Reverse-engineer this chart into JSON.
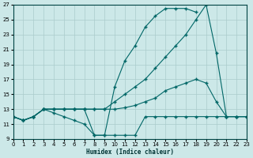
{
  "xlabel": "Humidex (Indice chaleur)",
  "bg_color": "#cce8e8",
  "grid_color": "#aacccc",
  "line_color": "#006666",
  "xlim": [
    0,
    23
  ],
  "ylim": [
    9,
    27
  ],
  "ytick_vals": [
    9,
    11,
    13,
    15,
    17,
    19,
    21,
    23,
    25,
    27
  ],
  "xtick_vals": [
    0,
    1,
    2,
    3,
    4,
    5,
    6,
    7,
    8,
    9,
    10,
    11,
    12,
    13,
    14,
    15,
    16,
    17,
    18,
    19,
    20,
    21,
    22,
    23
  ],
  "curve1_x": [
    0,
    1,
    2,
    3,
    4,
    5,
    6,
    7,
    8,
    9,
    10,
    11,
    12,
    13,
    14,
    15,
    16,
    17,
    18
  ],
  "curve1_y": [
    12,
    11.5,
    12,
    13,
    13,
    13,
    13,
    13,
    9.5,
    9.5,
    16,
    19.5,
    21.5,
    24,
    25.5,
    26.5,
    26.5,
    26.5,
    26
  ],
  "curve2_x": [
    0,
    1,
    2,
    3,
    4,
    5,
    6,
    7,
    8,
    9,
    10,
    11,
    12,
    13,
    14,
    15,
    16,
    17,
    18,
    19,
    20,
    21,
    22,
    23
  ],
  "curve2_y": [
    12,
    11.5,
    12,
    13,
    13,
    13,
    13,
    13,
    13,
    13,
    14,
    15,
    16,
    17,
    18.5,
    20,
    21.5,
    23,
    25,
    27,
    20.5,
    12,
    12,
    12
  ],
  "curve3_x": [
    0,
    1,
    2,
    3,
    4,
    5,
    6,
    7,
    8,
    9,
    10,
    11,
    12,
    13,
    14,
    15,
    16,
    17,
    18,
    19,
    20,
    21,
    22,
    23
  ],
  "curve3_y": [
    12,
    11.5,
    12,
    13,
    13,
    13,
    13,
    13,
    13,
    13,
    13,
    13.2,
    13.5,
    14,
    14.5,
    15.5,
    16,
    16.5,
    17,
    16.5,
    14,
    12,
    12,
    12
  ],
  "curve4_x": [
    0,
    1,
    2,
    3,
    4,
    5,
    6,
    7,
    8,
    9,
    10,
    11,
    12,
    13,
    14,
    15,
    16,
    17,
    18,
    19,
    20,
    21,
    22,
    23
  ],
  "curve4_y": [
    12,
    11.5,
    12,
    13,
    12.5,
    12,
    11.5,
    11,
    9.5,
    9.5,
    9.5,
    9.5,
    9.5,
    12,
    12,
    12,
    12,
    12,
    12,
    12,
    12,
    12,
    12,
    12
  ]
}
